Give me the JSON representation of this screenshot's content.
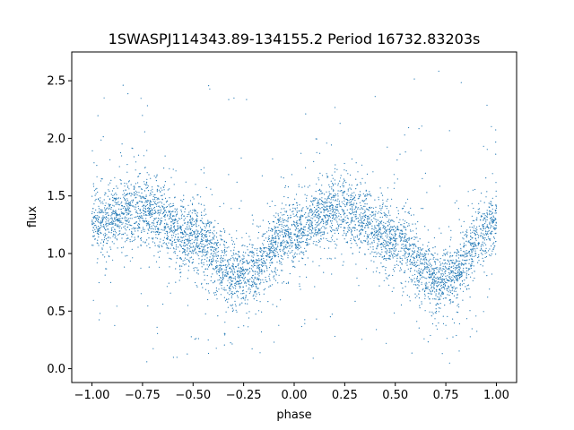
{
  "chart_data": {
    "type": "scatter",
    "title": "1SWASPJ114343.89-134155.2 Period 16732.83203s",
    "xlabel": "phase",
    "ylabel": "flux",
    "xlim": [
      -1.1,
      1.1
    ],
    "ylim": [
      -0.12,
      2.75
    ],
    "xticks": [
      -1.0,
      -0.75,
      -0.5,
      -0.25,
      0.0,
      0.25,
      0.5,
      0.75,
      1.0
    ],
    "xtick_labels": [
      "−1.00",
      "−0.75",
      "−0.50",
      "−0.25",
      "0.00",
      "0.25",
      "0.50",
      "0.75",
      "1.00"
    ],
    "yticks": [
      0.0,
      0.5,
      1.0,
      1.5,
      2.0,
      2.5
    ],
    "ytick_labels": [
      "0.0",
      "0.5",
      "1.0",
      "1.5",
      "2.0",
      "2.5"
    ],
    "grid": false,
    "point_color": "#1f77b4",
    "trend": {
      "description_free_series": true,
      "phase": [
        -1.0,
        -0.75,
        -0.5,
        -0.3,
        -0.25,
        0.0,
        0.2,
        0.25,
        0.5,
        0.7,
        0.75,
        1.0
      ],
      "flux": [
        1.28,
        1.38,
        1.15,
        0.8,
        0.82,
        1.18,
        1.38,
        1.36,
        1.12,
        0.78,
        0.8,
        1.28
      ]
    }
  }
}
